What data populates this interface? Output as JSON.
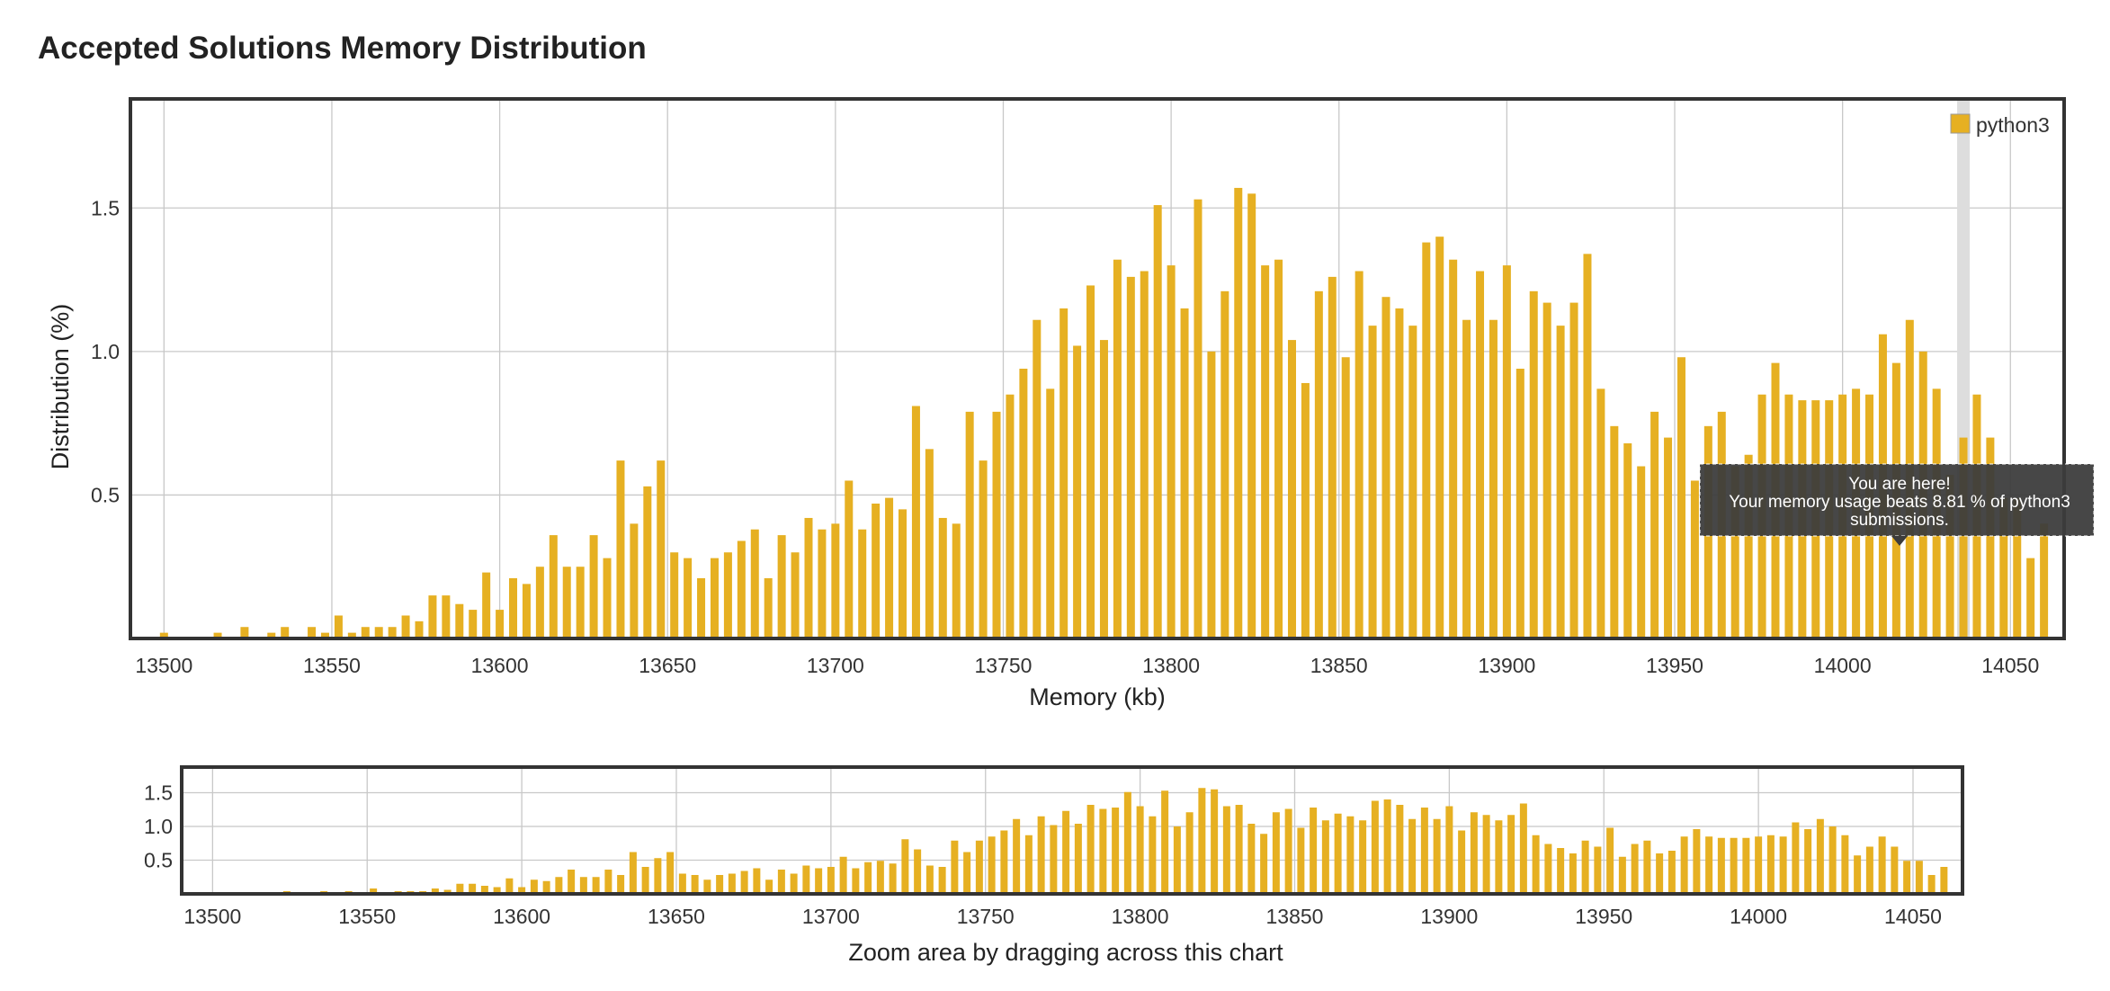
{
  "page": {
    "title": "Accepted Solutions Memory Distribution"
  },
  "colors": {
    "bar": "#e6b022",
    "grid": "#c8c8c8",
    "frame": "#333333",
    "tooltip_bg": "#3c3c3c",
    "marker": "#dddddd"
  },
  "tooltip": {
    "line1": "You are here!",
    "line2": "Your memory usage beats 8.81 % of python3",
    "line3": "submissions.",
    "x_value": 14036
  },
  "navigator": {
    "caption": "Zoom area by dragging across this chart"
  },
  "chart_data": {
    "type": "bar",
    "xlabel": "Memory (kb)",
    "ylabel": "Distribution (%)",
    "xlim": [
      13490,
      14066
    ],
    "ylim": [
      0,
      1.88
    ],
    "xticks": [
      13500,
      13550,
      13600,
      13650,
      13700,
      13750,
      13800,
      13850,
      13900,
      13950,
      14000,
      14050
    ],
    "xtick_labels": [
      "13500",
      "13550",
      "13600",
      "13650",
      "13700",
      "13750",
      "13800",
      "13850",
      "13900",
      "13950",
      "14000",
      "14050"
    ],
    "yticks": [
      0.5,
      1.0,
      1.5
    ],
    "ytick_labels": [
      "0.5",
      "1.0",
      "1.5"
    ],
    "legend": {
      "position": "top-right",
      "label": "python3"
    },
    "grid": true,
    "navigator_ylim": [
      0,
      1.88
    ],
    "navigator_yticks": [
      0.5,
      1.0,
      1.5
    ],
    "navigator_ytick_labels": [
      "0.5",
      "1.0",
      "1.5"
    ],
    "series": [
      {
        "name": "python3",
        "x": [
          13500,
          13516,
          13524,
          13532,
          13536,
          13544,
          13548,
          13552,
          13556,
          13560,
          13564,
          13568,
          13572,
          13576,
          13580,
          13584,
          13588,
          13592,
          13596,
          13600,
          13604,
          13608,
          13612,
          13616,
          13620,
          13624,
          13628,
          13632,
          13636,
          13640,
          13644,
          13648,
          13652,
          13656,
          13660,
          13664,
          13668,
          13672,
          13676,
          13680,
          13684,
          13688,
          13692,
          13696,
          13700,
          13704,
          13708,
          13712,
          13716,
          13720,
          13724,
          13728,
          13732,
          13736,
          13740,
          13744,
          13748,
          13752,
          13756,
          13760,
          13764,
          13768,
          13772,
          13776,
          13780,
          13784,
          13788,
          13792,
          13796,
          13800,
          13804,
          13808,
          13812,
          13816,
          13820,
          13824,
          13828,
          13832,
          13836,
          13840,
          13844,
          13848,
          13852,
          13856,
          13860,
          13864,
          13868,
          13872,
          13876,
          13880,
          13884,
          13888,
          13892,
          13896,
          13900,
          13904,
          13908,
          13912,
          13916,
          13920,
          13924,
          13928,
          13932,
          13936,
          13940,
          13944,
          13948,
          13952,
          13956,
          13960,
          13964,
          13968,
          13972,
          13976,
          13980,
          13984,
          13988,
          13992,
          13996,
          14000,
          14004,
          14008,
          14012,
          14016,
          14020,
          14024,
          14028,
          14032,
          14036,
          14040,
          14044,
          14048,
          14052,
          14056,
          14060
        ],
        "values": [
          0.02,
          0.02,
          0.04,
          0.02,
          0.04,
          0.04,
          0.02,
          0.08,
          0.02,
          0.04,
          0.04,
          0.04,
          0.08,
          0.06,
          0.15,
          0.15,
          0.12,
          0.1,
          0.23,
          0.1,
          0.21,
          0.19,
          0.25,
          0.36,
          0.25,
          0.25,
          0.36,
          0.28,
          0.62,
          0.4,
          0.53,
          0.62,
          0.3,
          0.28,
          0.21,
          0.28,
          0.3,
          0.34,
          0.38,
          0.21,
          0.36,
          0.3,
          0.42,
          0.38,
          0.4,
          0.55,
          0.38,
          0.47,
          0.49,
          0.45,
          0.81,
          0.66,
          0.42,
          0.4,
          0.79,
          0.62,
          0.79,
          0.85,
          0.94,
          1.11,
          0.87,
          1.15,
          1.02,
          1.23,
          1.04,
          1.32,
          1.26,
          1.28,
          1.51,
          1.3,
          1.15,
          1.53,
          1.0,
          1.21,
          1.57,
          1.55,
          1.3,
          1.32,
          1.04,
          0.89,
          1.21,
          1.26,
          0.98,
          1.28,
          1.09,
          1.19,
          1.15,
          1.09,
          1.38,
          1.4,
          1.32,
          1.11,
          1.28,
          1.11,
          1.3,
          0.94,
          1.21,
          1.17,
          1.09,
          1.17,
          1.34,
          0.87,
          0.74,
          0.68,
          0.6,
          0.79,
          0.7,
          0.98,
          0.55,
          0.74,
          0.79,
          0.6,
          0.64,
          0.85,
          0.96,
          0.85,
          0.83,
          0.83,
          0.83,
          0.85,
          0.87,
          0.85,
          1.06,
          0.96,
          1.11,
          1.0,
          0.87,
          0.57,
          0.7,
          0.85,
          0.7,
          0.49,
          0.49,
          0.28,
          0.4
        ]
      }
    ]
  }
}
